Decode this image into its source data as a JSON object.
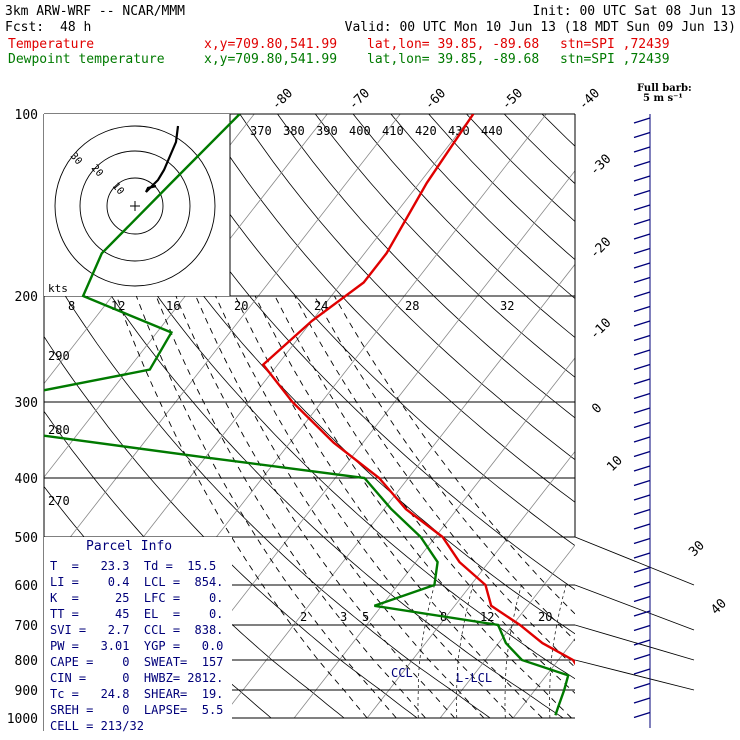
{
  "header": {
    "model": "3km ARW-WRF -- NCAR/MMM",
    "init": "Init: 00 UTC Sat 08 Jun 13",
    "fcst_label": "Fcst:",
    "fcst_value": "48 h",
    "valid": "Valid: 00 UTC Mon 10 Jun 13 (18 MDT Sun 09 Jun 13)",
    "temp_label": "Temperature",
    "dew_label": "Dewpoint temperature",
    "xy": "x,y=709.80,541.99",
    "latlon": "lat,lon= 39.85, -89.68",
    "stn": "stn=SPI ,72439"
  },
  "barb_legend": {
    "line1": "Full barb:",
    "line2": "5 m s⁻¹"
  },
  "hodograph": {
    "kts_label": "kts",
    "ring_labels": [
      "30",
      "20",
      "10"
    ]
  },
  "parcel_info": {
    "title": "Parcel Info",
    "rows": [
      "T  =   23.3  Td =  15.5",
      "LI =    0.4  LCL =  854.",
      "K  =     25  LFC =    0.",
      "TT =     45  EL  =    0.",
      "SVI =   2.7  CCL =  838.",
      "PW =   3.01  YGP =   0.0",
      "CAPE =    0  SWEAT=  157",
      "CIN =     0  HWBZ= 2812.",
      "Tc =   24.8  SHEAR=  19.",
      "SREH =    0  LAPSE=  5.5",
      "CELL = 213/32"
    ]
  },
  "chart_data": {
    "type": "line",
    "title": "",
    "xlabel": "",
    "ylabel": "",
    "pressure_levels": [
      "100",
      "200",
      "300",
      "400",
      "500",
      "600",
      "700",
      "800",
      "900",
      "1000"
    ],
    "top_temp_labels": [
      "-80",
      "-70",
      "-60",
      "-50",
      "-40"
    ],
    "right_temp_labels": [
      "-30",
      "-20",
      "-10",
      "0",
      "10",
      "30",
      "40"
    ],
    "theta_labels": [
      "370",
      "380",
      "390",
      "400",
      "410",
      "420",
      "430",
      "440"
    ],
    "theta_left_labels": [
      "290",
      "280",
      "270"
    ],
    "mixing_ratio_labels": [
      "8",
      "12",
      "16",
      "20",
      "24",
      "28",
      "32"
    ],
    "mixing_ratio_lower_labels": [
      "2",
      "3",
      "5",
      "8",
      "12",
      "20"
    ],
    "level_labels": [
      "CCL",
      "L-LCL"
    ],
    "series": [
      {
        "name": "Temperature",
        "color": "#e00000",
        "p": [
          100,
          130,
          170,
          190,
          220,
          260,
          300,
          350,
          400,
          450,
          500,
          550,
          600,
          650,
          700,
          750,
          800,
          850,
          900,
          950,
          990
        ],
        "t": [
          -60,
          -59,
          -57,
          -57,
          -60,
          -62,
          -54,
          -44,
          -34,
          -27,
          -19,
          -14,
          -8,
          -5,
          1,
          6,
          12,
          15,
          18,
          21,
          23.3
        ]
      },
      {
        "name": "Dewpoint temperature",
        "color": "#007a00",
        "p": [
          100,
          130,
          170,
          200,
          230,
          265,
          290,
          330,
          370,
          400,
          450,
          500,
          550,
          600,
          650,
          700,
          750,
          800,
          850,
          900,
          960,
          990
        ],
        "t": [
          -92,
          -94,
          -96,
          -94,
          -78,
          -77,
          -91,
          -94,
          -60,
          -36,
          -29,
          -22,
          -17,
          -15,
          -21,
          -2,
          1,
          5,
          13,
          14,
          15,
          15.5
        ]
      }
    ]
  },
  "colors": {
    "temperature": "#e00000",
    "dewpoint": "#007a00",
    "barbs": "#00007a",
    "text_blue": "#00007a"
  }
}
